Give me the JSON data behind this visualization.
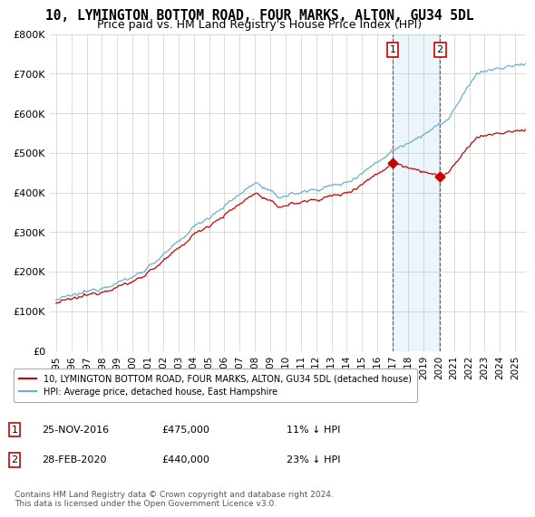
{
  "title": "10, LYMINGTON BOTTOM ROAD, FOUR MARKS, ALTON, GU34 5DL",
  "subtitle": "Price paid vs. HM Land Registry's House Price Index (HPI)",
  "ylim": [
    0,
    800000
  ],
  "yticks": [
    0,
    100000,
    200000,
    300000,
    400000,
    500000,
    600000,
    700000,
    800000
  ],
  "ytick_labels": [
    "£0",
    "£100K",
    "£200K",
    "£300K",
    "£400K",
    "£500K",
    "£600K",
    "£700K",
    "£800K"
  ],
  "hpi_color": "#6ab0d4",
  "price_color": "#cc0000",
  "marker1_idx": 264,
  "marker1_price": 475000,
  "marker1_date_str": "25-NOV-2016",
  "marker1_pct": "11% ↓ HPI",
  "marker2_idx": 301,
  "marker2_price": 440000,
  "marker2_date_str": "28-FEB-2020",
  "marker2_pct": "23% ↓ HPI",
  "legend_label1": "10, LYMINGTON BOTTOM ROAD, FOUR MARKS, ALTON, GU34 5DL (detached house)",
  "legend_label2": "HPI: Average price, detached house, East Hampshire",
  "footer": "Contains HM Land Registry data © Crown copyright and database right 2024.\nThis data is licensed under the Open Government Licence v3.0.",
  "background_color": "#ffffff",
  "grid_color": "#cccccc"
}
